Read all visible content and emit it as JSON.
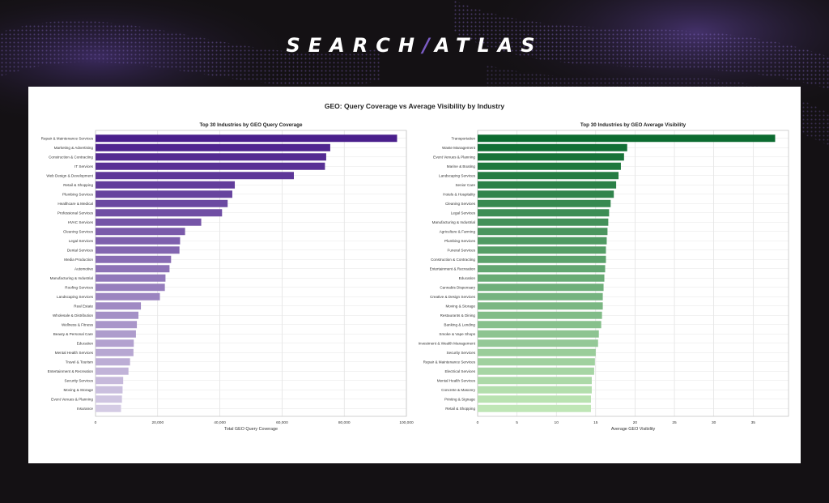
{
  "brand": {
    "left": "SEARCH",
    "slash": "/",
    "right": "ATLAS"
  },
  "figure_title": "GEO: Query Coverage vs Average Visibility by Industry",
  "chart_data": [
    {
      "type": "bar",
      "orientation": "horizontal",
      "title": "Top 30 Industries by GEO Query Coverage",
      "xlabel": "Total GEO Query Coverage",
      "ylabel": "",
      "xlim": [
        0,
        100000
      ],
      "ticks": [
        0,
        20000,
        40000,
        60000,
        80000,
        100000
      ],
      "tick_labels": [
        "0",
        "20,000",
        "40,000",
        "60,000",
        "80,000",
        "100,000"
      ],
      "grid": true,
      "color_ramp": [
        "#4a1f8c",
        "#d4cbe4"
      ],
      "categories": [
        "Repair & Maintenance Services",
        "Marketing & Advertising",
        "Construction & Contracting",
        "IT Services",
        "Web Design & Development",
        "Retail & Shopping",
        "Plumbing Services",
        "Healthcare & Medical",
        "Professional Services",
        "HVAC Services",
        "Cleaning Services",
        "Legal Services",
        "Dental Services",
        "Media Production",
        "Automotive",
        "Manufacturing & Industrial",
        "Roofing Services",
        "Landscaping Services",
        "Real Estate",
        "Wholesale & Distribution",
        "Wellness & Fitness",
        "Beauty & Personal Care",
        "Education",
        "Mental Health Services",
        "Travel & Tourism",
        "Entertainment & Recreation",
        "Security Services",
        "Moving & Storage",
        "Event Venues & Planning",
        "Insurance"
      ],
      "values": [
        97000,
        75500,
        74200,
        73800,
        63800,
        44800,
        44000,
        42500,
        40700,
        34000,
        28800,
        27200,
        27000,
        24300,
        23800,
        22500,
        22300,
        20700,
        14600,
        13800,
        13300,
        13000,
        12300,
        12200,
        11100,
        10600,
        8900,
        8700,
        8500,
        8200
      ]
    },
    {
      "type": "bar",
      "orientation": "horizontal",
      "title": "Top 30 Industries by GEO Average Visibility",
      "xlabel": "Average GEO Visibility",
      "ylabel": "",
      "xlim": [
        0,
        39.5
      ],
      "ticks": [
        0,
        5,
        10,
        15,
        20,
        25,
        30,
        35
      ],
      "tick_labels": [
        "0",
        "5",
        "10",
        "15",
        "20",
        "25",
        "30",
        "35"
      ],
      "grid": true,
      "color_ramp": [
        "#0c6b30",
        "#bfe6b6"
      ],
      "categories": [
        "Transportation",
        "Waste Management",
        "Event Venues & Planning",
        "Marine & Boating",
        "Landscaping Services",
        "Senior Care",
        "Hotels & Hospitality",
        "Cleaning Services",
        "Legal Services",
        "Manufacturing & Industrial",
        "Agriculture & Farming",
        "Plumbing Services",
        "Funeral Services",
        "Construction & Contracting",
        "Entertainment & Recreation",
        "Education",
        "Cannabis Dispensary",
        "Creative & Design Services",
        "Moving & Storage",
        "Restaurants & Dining",
        "Banking & Lending",
        "Smoke & Vape Shops",
        "Investment & Wealth Management",
        "Security Services",
        "Repair & Maintenance Services",
        "Electrical Services",
        "Mental Health Services",
        "Concrete & Masonry",
        "Printing & Signage",
        "Retail & Shopping"
      ],
      "values": [
        37.8,
        19.0,
        18.6,
        18.2,
        17.9,
        17.6,
        17.3,
        16.9,
        16.7,
        16.6,
        16.5,
        16.4,
        16.3,
        16.3,
        16.2,
        16.1,
        16.0,
        15.9,
        15.9,
        15.8,
        15.7,
        15.4,
        15.3,
        15.0,
        14.9,
        14.8,
        14.5,
        14.5,
        14.4,
        14.4
      ]
    }
  ]
}
